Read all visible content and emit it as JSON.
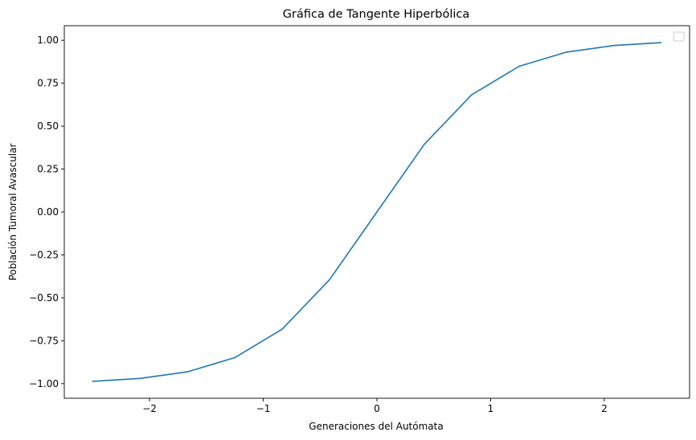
{
  "chart_data": {
    "type": "line",
    "title": "Gráfica de Tangente Hiperbólica",
    "xlabel": "Generaciones del Autómata",
    "ylabel": "Población Tumoral Avascular",
    "xlim": [
      -2.75,
      2.75
    ],
    "ylim": [
      -1.085,
      1.085
    ],
    "x_ticks": [
      -2,
      -1,
      0,
      1,
      2
    ],
    "x_tick_labels": [
      "−2",
      "−1",
      "0",
      "1",
      "2"
    ],
    "y_ticks": [
      -1.0,
      -0.75,
      -0.5,
      -0.25,
      0.0,
      0.25,
      0.5,
      0.75,
      1.0
    ],
    "y_tick_labels": [
      "−1.00",
      "−0.75",
      "−0.50",
      "−0.25",
      "0.00",
      "0.25",
      "0.50",
      "0.75",
      "1.00"
    ],
    "grid": false,
    "legend": "top-right (empty)",
    "series": [
      {
        "color": "#1f77b4",
        "x": [
          -2.5,
          -2.0833,
          -1.6667,
          -1.25,
          -0.8333,
          -0.4167,
          0.0,
          0.4167,
          0.8333,
          1.25,
          1.6667,
          2.0833,
          2.5
        ],
        "y": [
          -0.9866,
          -0.9695,
          -0.9311,
          -0.8483,
          -0.6823,
          -0.3942,
          0.0,
          0.3942,
          0.6823,
          0.8483,
          0.9311,
          0.9695,
          0.9866
        ]
      }
    ]
  }
}
